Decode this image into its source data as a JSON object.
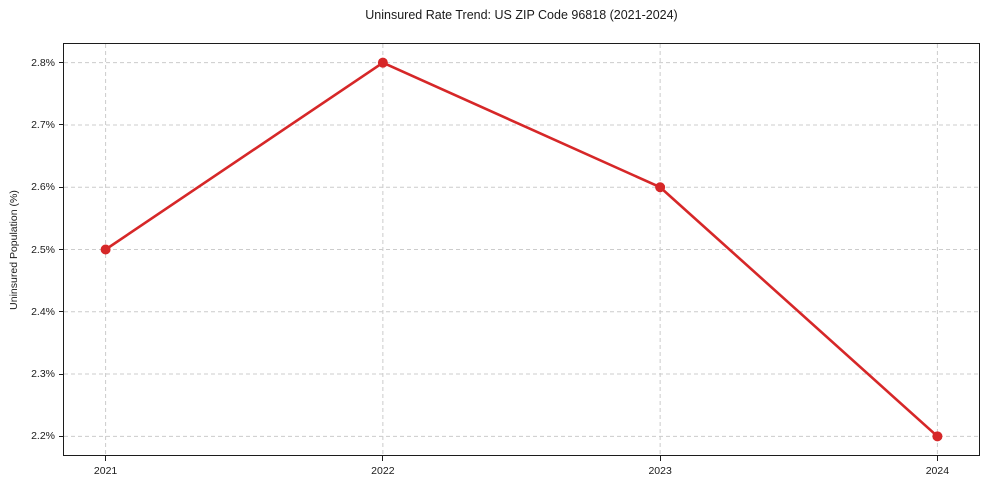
{
  "chart_data": {
    "type": "line",
    "title": "Uninsured Rate Trend: US ZIP Code 96818 (2021-2024)",
    "xlabel": "",
    "ylabel": "Uninsured Population (%)",
    "x": [
      2021,
      2022,
      2023,
      2024
    ],
    "x_tick_labels": [
      "2021",
      "2022",
      "2023",
      "2024"
    ],
    "series": [
      {
        "name": "Uninsured Population (%)",
        "values": [
          2.5,
          2.8,
          2.6,
          2.2
        ]
      }
    ],
    "y_ticks": [
      2.2,
      2.3,
      2.4,
      2.5,
      2.6,
      2.7,
      2.8
    ],
    "y_tick_labels": [
      "2.2%",
      "2.3%",
      "2.4%",
      "2.5%",
      "2.6%",
      "2.7%",
      "2.8%"
    ],
    "xlim": [
      2020.85,
      2024.15
    ],
    "ylim": [
      2.17,
      2.83
    ],
    "grid": true,
    "legend": "none",
    "line_color": "#d62728",
    "marker": "circle",
    "marker_color": "#d62728",
    "grid_color": "#cccccc",
    "spine_color": "#1c1c1c",
    "background_color": "#ffffff",
    "text_color": "#1a1a1a"
  }
}
